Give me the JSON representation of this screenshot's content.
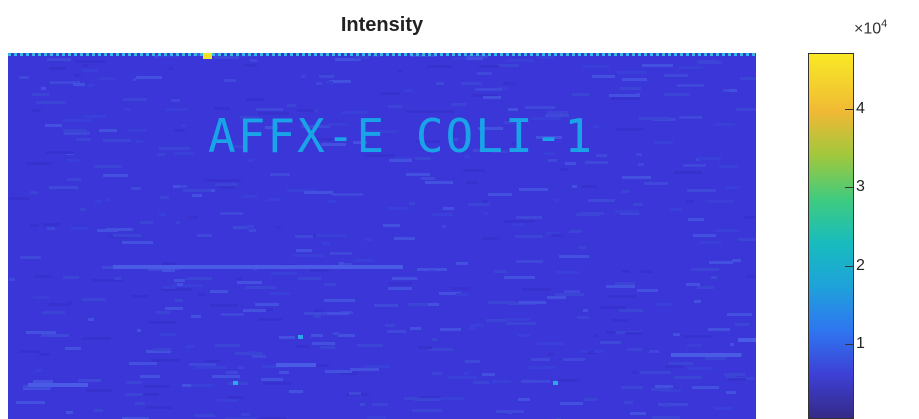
{
  "chart_data": {
    "type": "heatmap",
    "title": "Intensity",
    "overlay_text": "AFFX-E COLI-1",
    "colormap": "parula",
    "colormap_colors": [
      "#352a87",
      "#3d40d6",
      "#2f76f0",
      "#1ea2da",
      "#18bcbd",
      "#3fcb7f",
      "#a0c83d",
      "#f0b935",
      "#f9e925"
    ],
    "background_color": "#3b36d8",
    "overlay_color": "#1aa4e8",
    "clim": [
      0,
      47000
    ],
    "colorbar": {
      "ticks": [
        10000,
        20000,
        30000,
        40000
      ],
      "tick_labels": [
        "1",
        "2",
        "3",
        "4"
      ],
      "exponent_prefix": "×10",
      "exponent_power": "4"
    }
  }
}
